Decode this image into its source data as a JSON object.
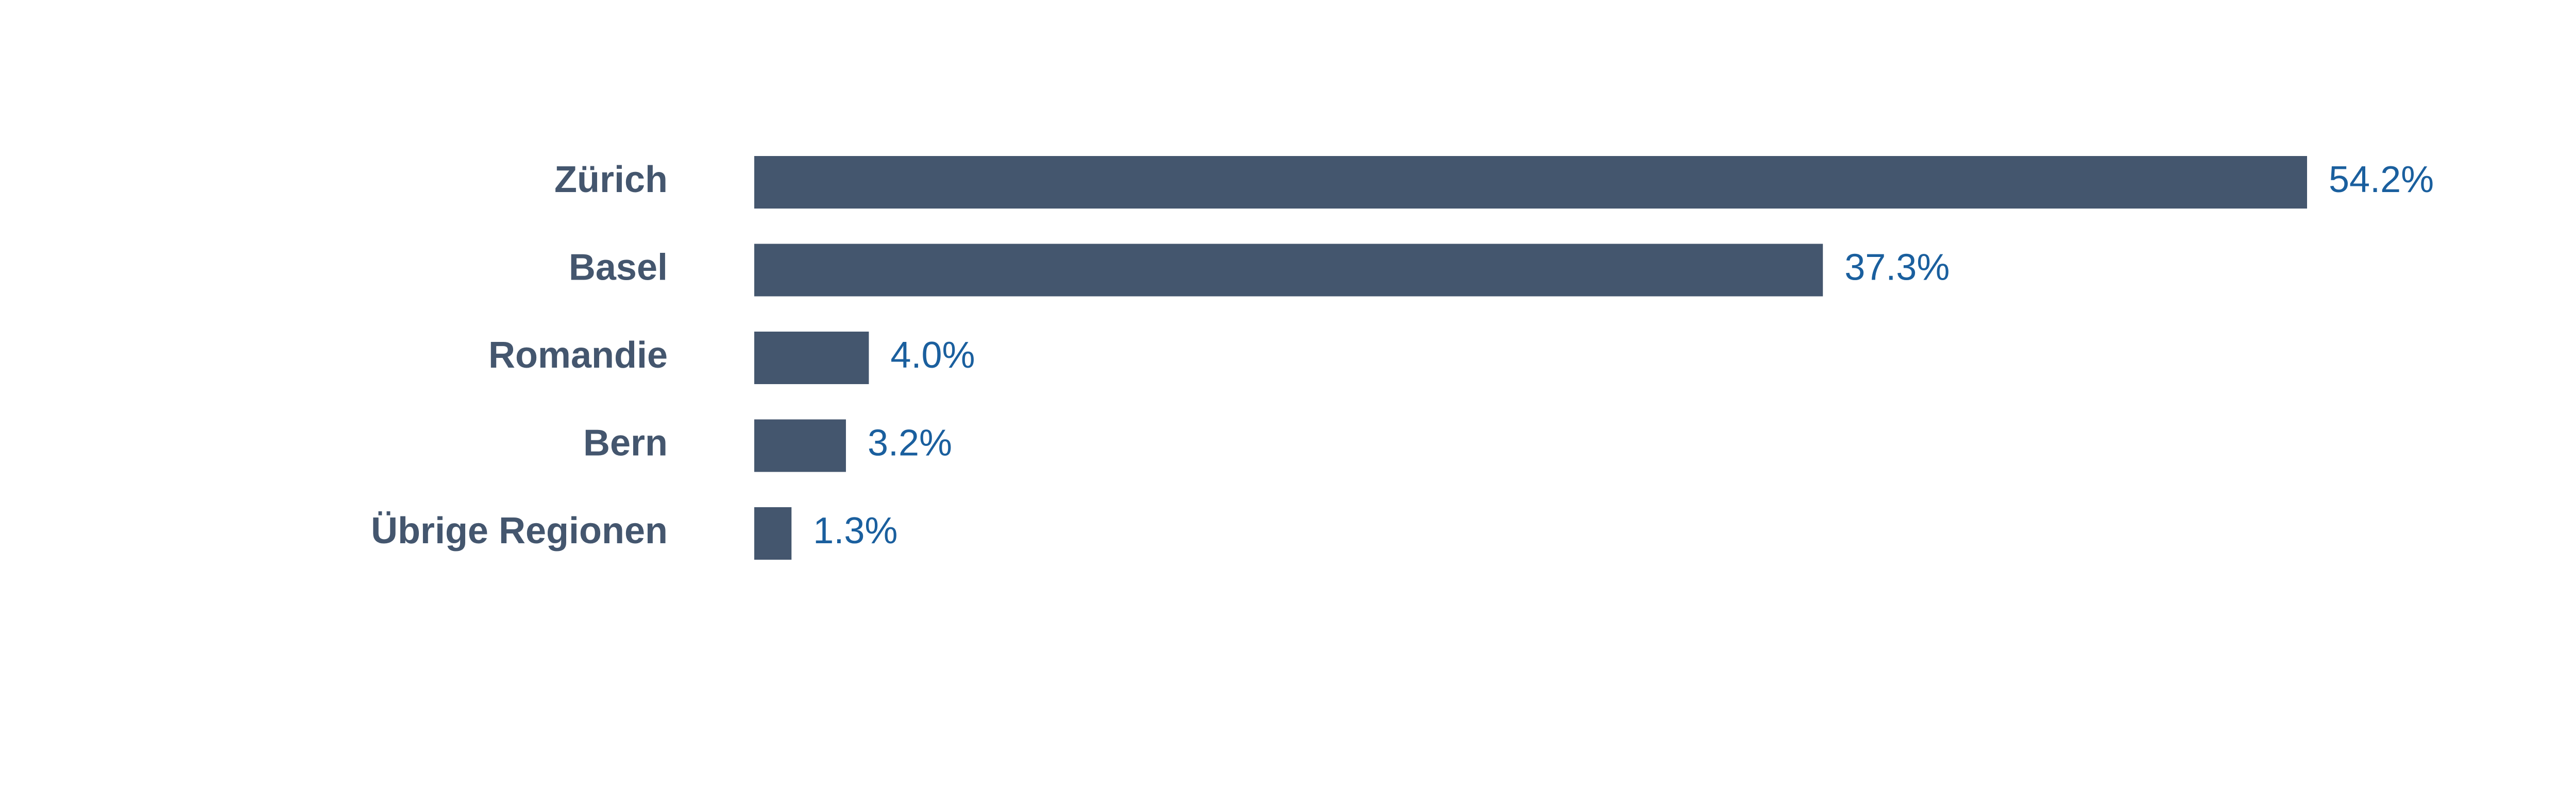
{
  "chart_data": {
    "type": "barh",
    "categories": [
      "Zürich",
      "Basel",
      "Romandie",
      "Bern",
      "Übrige Regionen"
    ],
    "values": [
      54.2,
      37.3,
      4.0,
      3.2,
      1.3
    ],
    "value_labels": [
      "54.2%",
      "37.3%",
      "4.0%",
      "3.2%",
      "1.3%"
    ],
    "color": "#44566e"
  }
}
